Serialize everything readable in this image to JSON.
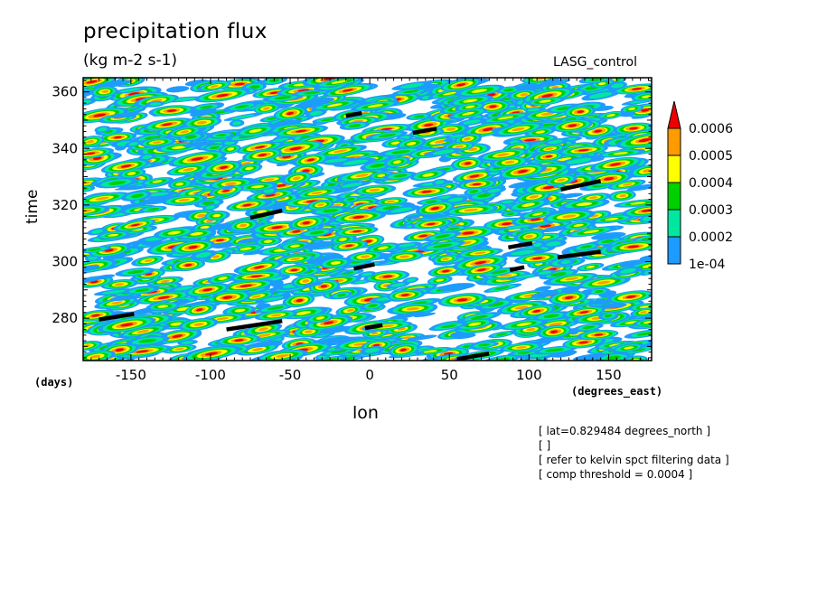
{
  "chart_data": {
    "type": "heatmap",
    "title": "precipitation flux",
    "subtitle": "(kg m-2 s-1)",
    "run_label": "LASG_control",
    "ylabel": "time",
    "yunits": "(days)",
    "xlabel": "lon",
    "xunits": "(degrees_east)",
    "xlim": [
      -180,
      177
    ],
    "ylim": [
      265,
      365
    ],
    "xticks": [
      -150,
      -100,
      -50,
      0,
      50,
      100,
      150
    ],
    "yticks": [
      280,
      300,
      320,
      340,
      360
    ],
    "colorbar": {
      "levels": [
        "1e-04",
        "0.0002",
        "0.0003",
        "0.0004",
        "0.0005",
        "0.0006"
      ],
      "colors": [
        "#1e9bff",
        "#00e8a0",
        "#00d000",
        "#ffff00",
        "#ff9a00",
        "#ee0000"
      ]
    },
    "kelvin_segments": [
      {
        "lon": [
          -170,
          -148
        ],
        "time": [
          279.5,
          281.5
        ]
      },
      {
        "lon": [
          -90,
          -55
        ],
        "time": [
          276,
          279
        ]
      },
      {
        "lon": [
          -75,
          -55
        ],
        "time": [
          315.5,
          318
        ]
      },
      {
        "lon": [
          -10,
          3
        ],
        "time": [
          297.5,
          299
        ]
      },
      {
        "lon": [
          -15,
          -5
        ],
        "time": [
          351.5,
          352.5
        ]
      },
      {
        "lon": [
          -3,
          8
        ],
        "time": [
          276.5,
          277.5
        ]
      },
      {
        "lon": [
          27,
          42
        ],
        "time": [
          345.5,
          347
        ]
      },
      {
        "lon": [
          55,
          75
        ],
        "time": [
          265.5,
          267.5
        ]
      },
      {
        "lon": [
          87,
          102
        ],
        "time": [
          305,
          306.5
        ]
      },
      {
        "lon": [
          88,
          97
        ],
        "time": [
          297,
          298
        ]
      },
      {
        "lon": [
          118,
          145
        ],
        "time": [
          301.5,
          303.5
        ]
      },
      {
        "lon": [
          120,
          145
        ],
        "time": [
          325.5,
          328.5
        ]
      }
    ]
  },
  "notes": [
    "[ lat=0.829484 degrees_north ]",
    "[  ]",
    "[ refer to kelvin spct filtering data ]",
    "[ comp threshold = 0.0004 ]"
  ]
}
